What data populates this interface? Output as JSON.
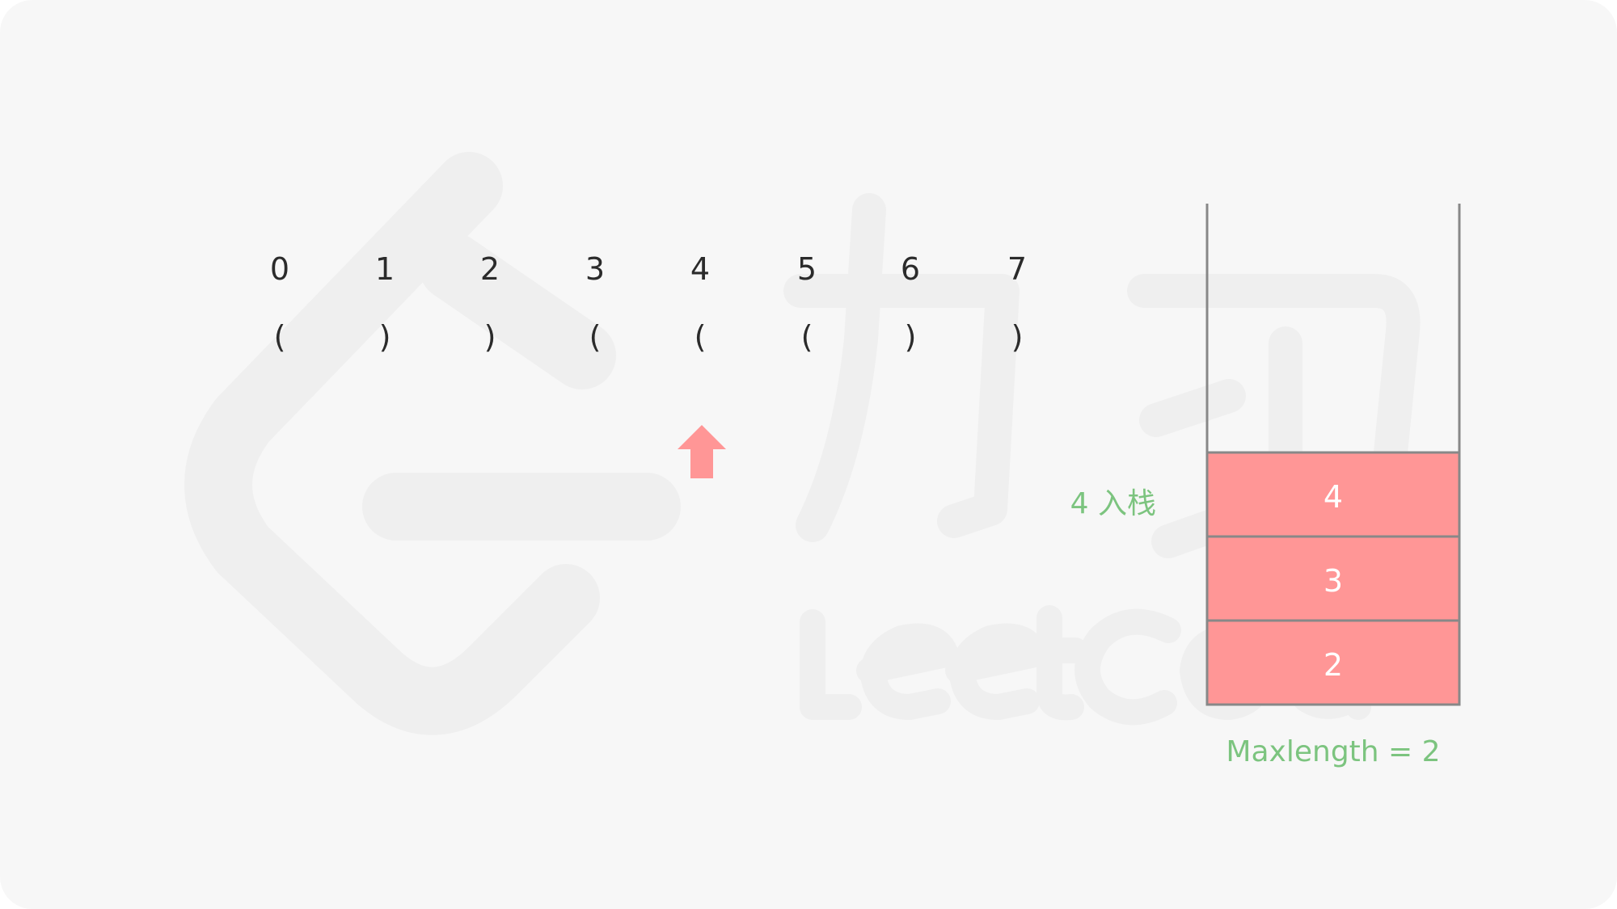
{
  "indices": [
    "0",
    "1",
    "2",
    "3",
    "4",
    "5",
    "6",
    "7"
  ],
  "chars": [
    "(",
    ")",
    ")",
    "(",
    "(",
    "(",
    ")",
    ")"
  ],
  "pointer_index": 4,
  "stack": {
    "items_top_to_bottom": [
      "4",
      "3",
      "2"
    ]
  },
  "push_label": "4 入栈",
  "maxlength_label": "Maxlength = 2",
  "colors": {
    "accent_red": "#ff9696",
    "label_green": "#7cc47f",
    "text_dark": "#2b2b2b",
    "background": "#f7f7f7"
  },
  "watermark_text": "LeetCode 力扣"
}
